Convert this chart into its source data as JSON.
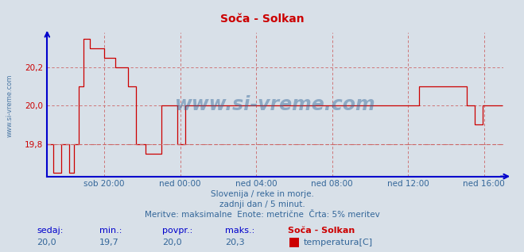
{
  "title": "Soča - Solkan",
  "bg_color": "#d8e0e8",
  "plot_bg_color": "#d8e0e8",
  "line_color": "#cc0000",
  "axis_color": "#0000cc",
  "grid_color": "#cc6666",
  "ylabel_color": "#cc0000",
  "xlabel_color": "#336699",
  "watermark_color": "#336699",
  "ylim": [
    19.63,
    20.38
  ],
  "yticks": [
    19.8,
    20.0,
    20.2
  ],
  "footer_line1": "Slovenija / reke in morje.",
  "footer_line2": "zadnji dan / 5 minut.",
  "footer_line3": "Meritve: maksimalne  Enote: metrične  Črta: 5% meritev",
  "bottom_labels": [
    "sedaj:",
    "min.:",
    "povpr.:",
    "maks.:",
    "Soča - Solkan"
  ],
  "bottom_values": [
    "20,0",
    "19,7",
    "20,0",
    "20,3",
    "temperatura[C]"
  ],
  "avg_line": 19.8,
  "x_tick_labels": [
    "sob 20:00",
    "ned 00:00",
    "ned 04:00",
    "ned 08:00",
    "ned 12:00",
    "ned 16:00"
  ],
  "total_points": 288,
  "watermark": "www.si-vreme.com",
  "side_label": "www.si-vreme.com",
  "swatch_color": "#cc0000"
}
